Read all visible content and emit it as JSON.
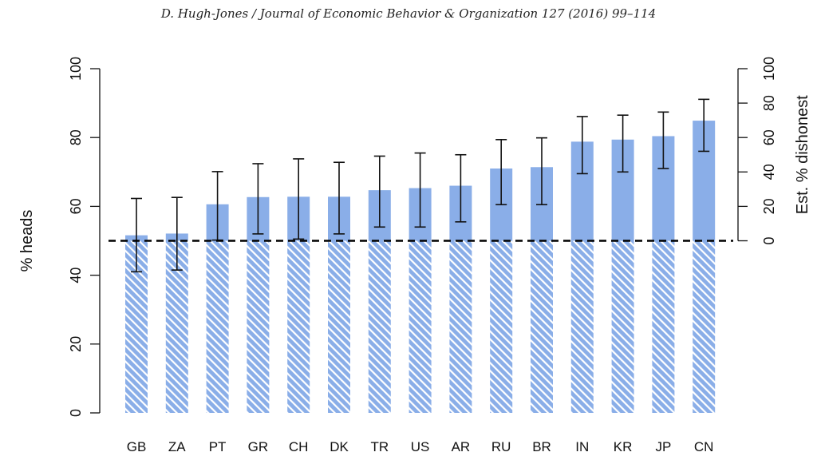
{
  "header": "D. Hugh-Jones / Journal of Economic Behavior & Organization 127 (2016) 99–114",
  "colors": {
    "bar": "#8aaee8",
    "hatch_stripe": "#ffffff",
    "axis": "#111111",
    "reference": "#000000"
  },
  "chart_data": {
    "type": "bar",
    "title": "",
    "categories": [
      "GB",
      "ZA",
      "PT",
      "GR",
      "CH",
      "DK",
      "TR",
      "US",
      "AR",
      "RU",
      "BR",
      "IN",
      "KR",
      "JP",
      "CN"
    ],
    "values": [
      51.6,
      52.1,
      60.6,
      62.7,
      62.8,
      62.8,
      64.7,
      65.3,
      66.0,
      71.0,
      71.4,
      78.8,
      79.4,
      80.4,
      84.9
    ],
    "ci_low": [
      41.0,
      41.5,
      50.2,
      52.0,
      50.5,
      52.0,
      54.0,
      54.0,
      55.5,
      60.5,
      60.5,
      69.5,
      70.0,
      71.0,
      76.0
    ],
    "ci_high": [
      62.3,
      62.6,
      70.1,
      72.4,
      73.8,
      72.8,
      74.6,
      75.5,
      75.0,
      79.4,
      79.9,
      86.1,
      86.5,
      87.4,
      91.1
    ],
    "ylabel": "% heads",
    "ylim": [
      0,
      100
    ],
    "yticks": [
      0,
      20,
      40,
      60,
      80,
      100
    ],
    "y2label": "Est. % dishonest",
    "y2ticks": [
      0,
      20,
      40,
      60,
      80,
      100
    ],
    "reference_line": 50,
    "hatched_below": 50,
    "grid": false
  }
}
